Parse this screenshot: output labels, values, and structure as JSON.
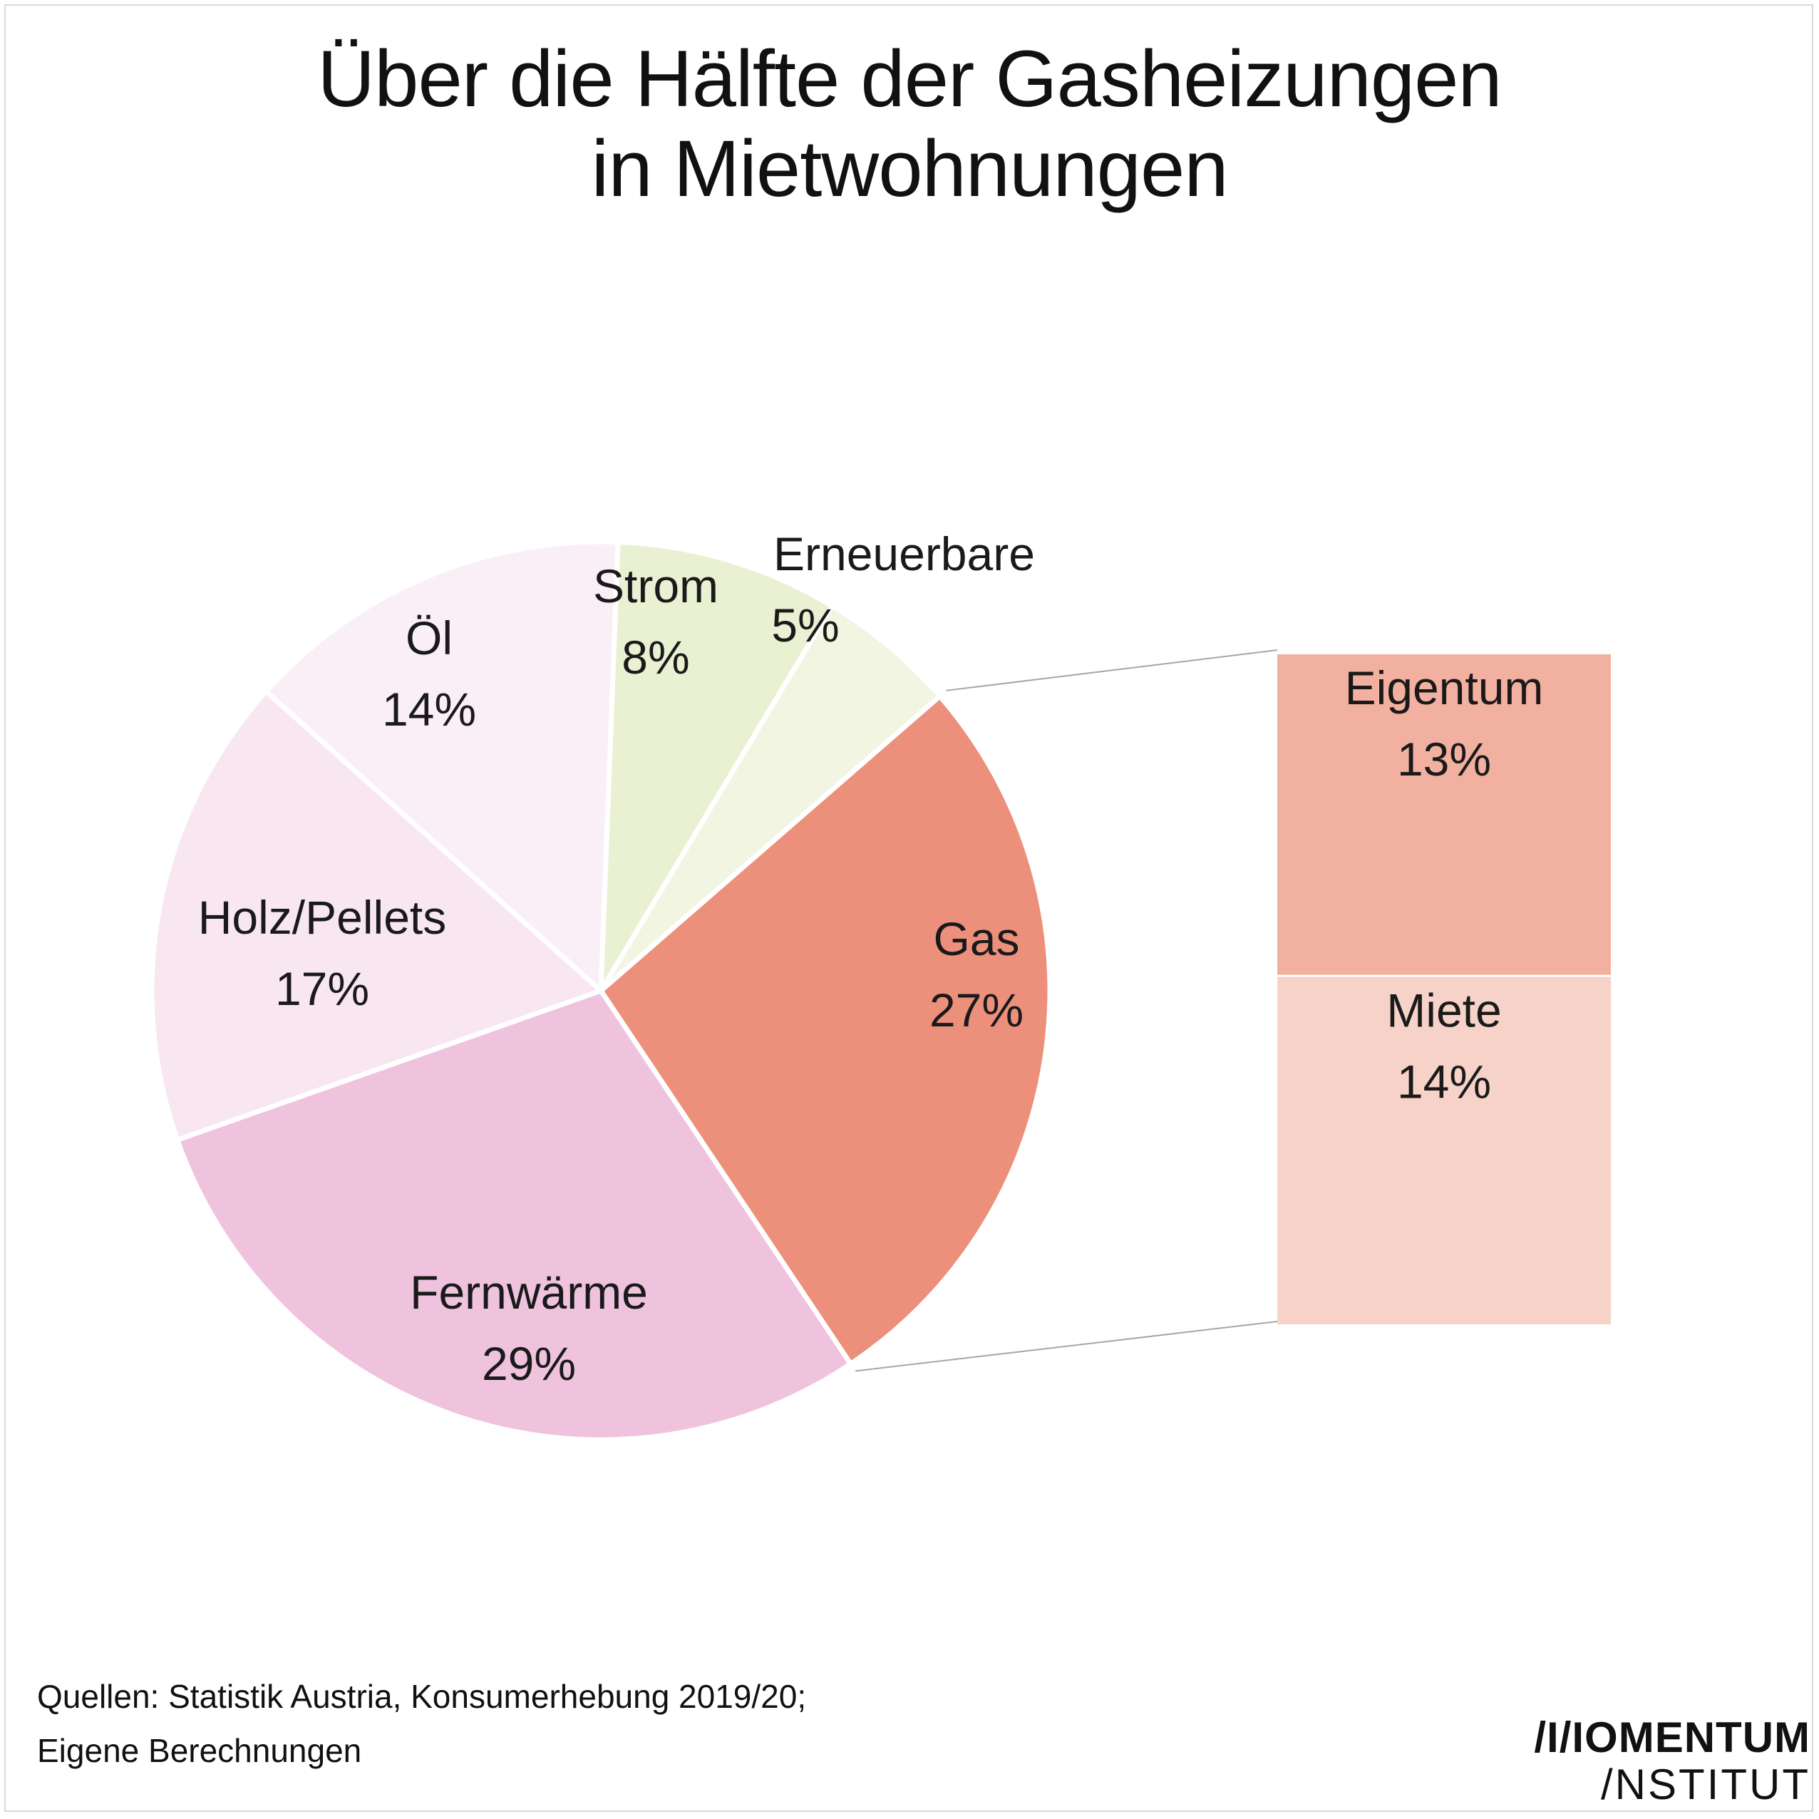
{
  "title_line1": "Über die Hälfte der Gasheizungen",
  "title_line2": "in Mietwohnungen",
  "chart_data": {
    "type": "pie",
    "unit": "%",
    "slices": [
      {
        "label": "Gas",
        "value": 27,
        "value_label": "27%",
        "color": "#ec907c"
      },
      {
        "label": "Fernwärme",
        "value": 29,
        "value_label": "29%",
        "color": "#efc2de"
      },
      {
        "label": "Holz/Pellets",
        "value": 17,
        "value_label": "17%",
        "color": "#f8e6f1"
      },
      {
        "label": "Öl",
        "value": 14,
        "value_label": "14%",
        "color": "#faeff6"
      },
      {
        "label": "Strom",
        "value": 8,
        "value_label": "8%",
        "color": "#e9f1d2"
      },
      {
        "label": "Erneuerbare",
        "value": 5,
        "value_label": "5%",
        "color": "#f2f5e1"
      }
    ],
    "breakdown": {
      "of": "Gas",
      "parts": [
        {
          "label": "Eigentum",
          "value": 13,
          "value_label": "13%",
          "color": "#f2b0a0"
        },
        {
          "label": "Miete",
          "value": 14,
          "value_label": "14%",
          "color": "#f7d2c8"
        }
      ]
    },
    "connector_color": "#a6a6a6"
  },
  "source_line1": "Quellen: Statistik Austria, Konsumerhebung 2019/20;",
  "source_line2": "Eigene Berechnungen",
  "logo_line1": "/I/IOMENTUM",
  "logo_line2": "/NSTITUT"
}
